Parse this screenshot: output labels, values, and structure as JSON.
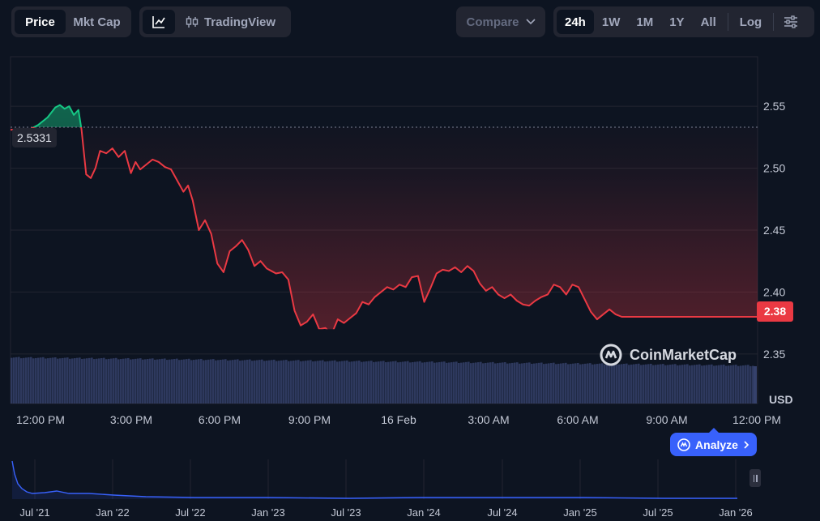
{
  "toolbar": {
    "metric_tabs": [
      {
        "label": "Price",
        "active": true
      },
      {
        "label": "Mkt Cap",
        "active": false
      }
    ],
    "chart_type": {
      "line_icon": "line-chart-icon",
      "candle_icon": "candlestick-icon",
      "tradingview_label": "TradingView"
    },
    "compare": {
      "label": "Compare",
      "icon": "chevron-down-icon"
    },
    "ranges": [
      {
        "label": "24h",
        "active": true
      },
      {
        "label": "1W",
        "active": false
      },
      {
        "label": "1M",
        "active": false
      },
      {
        "label": "1Y",
        "active": false
      },
      {
        "label": "All",
        "active": false
      }
    ],
    "log_label": "Log",
    "settings_icon": "sliders-icon"
  },
  "price_labels": {
    "open": "2.5331",
    "last": "2.38"
  },
  "currency": "USD",
  "watermark": "CoinMarketCap",
  "analyze_label": "Analyze",
  "colors": {
    "up": "#16c784",
    "down": "#ea3943",
    "volume": "#3a4673",
    "accent": "#3861fb",
    "overview_line": "#3861fb"
  },
  "chart_data": {
    "type": "line",
    "y_ticks": [
      2.55,
      2.5,
      2.45,
      2.4,
      2.35
    ],
    "ylim": [
      2.31,
      2.59
    ],
    "x_ticks": [
      "12:00 PM",
      "3:00 PM",
      "6:00 PM",
      "9:00 PM",
      "16 Feb",
      "3:00 AM",
      "6:00 AM",
      "9:00 AM",
      "12:00 PM"
    ],
    "open_price": 2.5331,
    "last_price": 2.38,
    "series": [
      {
        "x": [
          0,
          0.3,
          0.6,
          0.9,
          1.2,
          1.45,
          1.6,
          1.75,
          1.9,
          2.05,
          2.2,
          2.3,
          2.45,
          2.6,
          2.75,
          2.9,
          3.1,
          3.3,
          3.5,
          3.7,
          3.9,
          4.05,
          4.2,
          4.4,
          4.6,
          4.8,
          5.0,
          5.2,
          5.4,
          5.6,
          5.75,
          5.9,
          6.1,
          6.3,
          6.5,
          6.7,
          6.9,
          7.1,
          7.3,
          7.5,
          7.7,
          7.9,
          8.1,
          8.3,
          8.45,
          8.6,
          8.8,
          9.0,
          9.2,
          9.4,
          9.6,
          9.8,
          10.0,
          10.2,
          10.4,
          10.6,
          10.8,
          11.0,
          11.2,
          11.4,
          11.6,
          11.8,
          12.0,
          12.2,
          12.4,
          12.6,
          12.8,
          13.0,
          13.2,
          13.4,
          13.6,
          13.8,
          14.0,
          14.2,
          14.4,
          14.6,
          14.8,
          15.0,
          15.2,
          15.4,
          15.6,
          15.8,
          16.0,
          16.2,
          16.4,
          16.6,
          16.8,
          17.0,
          17.2,
          17.4,
          17.6,
          17.8,
          18.0,
          18.2,
          18.4,
          18.6,
          18.8,
          19.0,
          19.2,
          19.4,
          19.6,
          19.8,
          20.0,
          20.2,
          20.4,
          20.6,
          20.8,
          21.0,
          21.2,
          21.4,
          21.6,
          21.8,
          22.0,
          22.2,
          22.4,
          22.6,
          22.8,
          23.0,
          23.2,
          23.4,
          23.6,
          23.8,
          24.0,
          24.2
        ],
        "y": [
          2.531,
          2.531,
          2.531,
          2.535,
          2.541,
          2.549,
          2.551,
          2.548,
          2.55,
          2.543,
          2.547,
          2.531,
          2.495,
          2.492,
          2.5,
          2.514,
          2.512,
          2.516,
          2.509,
          2.514,
          2.496,
          2.505,
          2.499,
          2.503,
          2.507,
          2.505,
          2.501,
          2.499,
          2.49,
          2.481,
          2.486,
          2.474,
          2.45,
          2.458,
          2.447,
          2.423,
          2.416,
          2.433,
          2.437,
          2.442,
          2.434,
          2.421,
          2.425,
          2.419,
          2.417,
          2.415,
          2.416,
          2.41,
          2.385,
          2.373,
          2.376,
          2.382,
          2.37,
          2.371,
          2.366,
          2.378,
          2.375,
          2.379,
          2.383,
          2.392,
          2.39,
          2.396,
          2.4,
          2.404,
          2.402,
          2.406,
          2.404,
          2.412,
          2.413,
          2.392,
          2.403,
          2.415,
          2.418,
          2.417,
          2.42,
          2.416,
          2.421,
          2.417,
          2.407,
          2.401,
          2.404,
          2.398,
          2.395,
          2.398,
          2.393,
          2.39,
          2.389,
          2.393,
          2.396,
          2.398,
          2.406,
          2.404,
          2.398,
          2.406,
          2.404,
          2.394,
          2.384,
          2.378,
          2.382,
          2.386,
          2.382,
          2.38,
          2.38,
          2.38,
          2.38,
          2.38,
          2.38,
          2.38,
          2.38,
          2.38,
          2.38,
          2.38,
          2.38,
          2.38,
          2.38,
          2.38,
          2.38,
          2.38,
          2.38,
          2.38,
          2.38,
          2.38,
          2.38,
          2.38
        ]
      }
    ],
    "overview": {
      "type": "line",
      "x_ticks": [
        "Jul '21",
        "Jan '22",
        "Jul '22",
        "Jan '23",
        "Jul '23",
        "Jan '24",
        "Jul '24",
        "Jan '25",
        "Jul '25",
        "Jan '26"
      ]
    }
  }
}
